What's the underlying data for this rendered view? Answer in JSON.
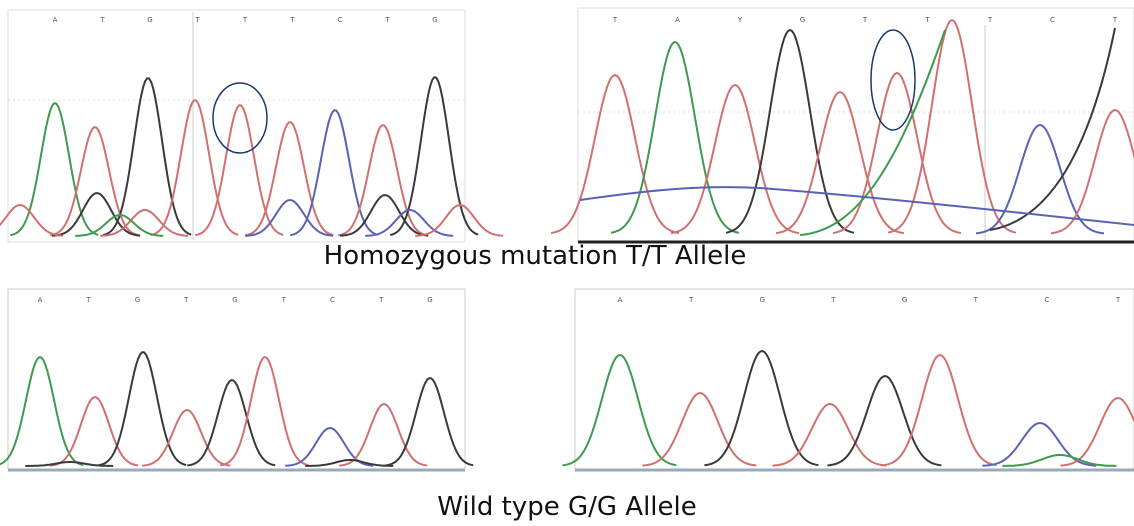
{
  "panels": [
    {
      "bases": [
        "A",
        "T",
        "G",
        "T",
        "T",
        "T",
        "C",
        "T",
        "G"
      ]
    },
    {
      "bases": [
        "T",
        "A",
        "Y",
        "G",
        "T",
        "T",
        "T",
        "C",
        "T"
      ]
    },
    {
      "bases": [
        "A",
        "T",
        "G",
        "T",
        "G",
        "T",
        "C",
        "T",
        "G"
      ]
    },
    {
      "bases": [
        "A",
        "T",
        "G",
        "T",
        "G",
        "T",
        "C",
        "T"
      ]
    }
  ],
  "captions": {
    "mutation": "Homozygous mutation T/T Allele",
    "wild_type": "Wild type G/G Allele"
  }
}
